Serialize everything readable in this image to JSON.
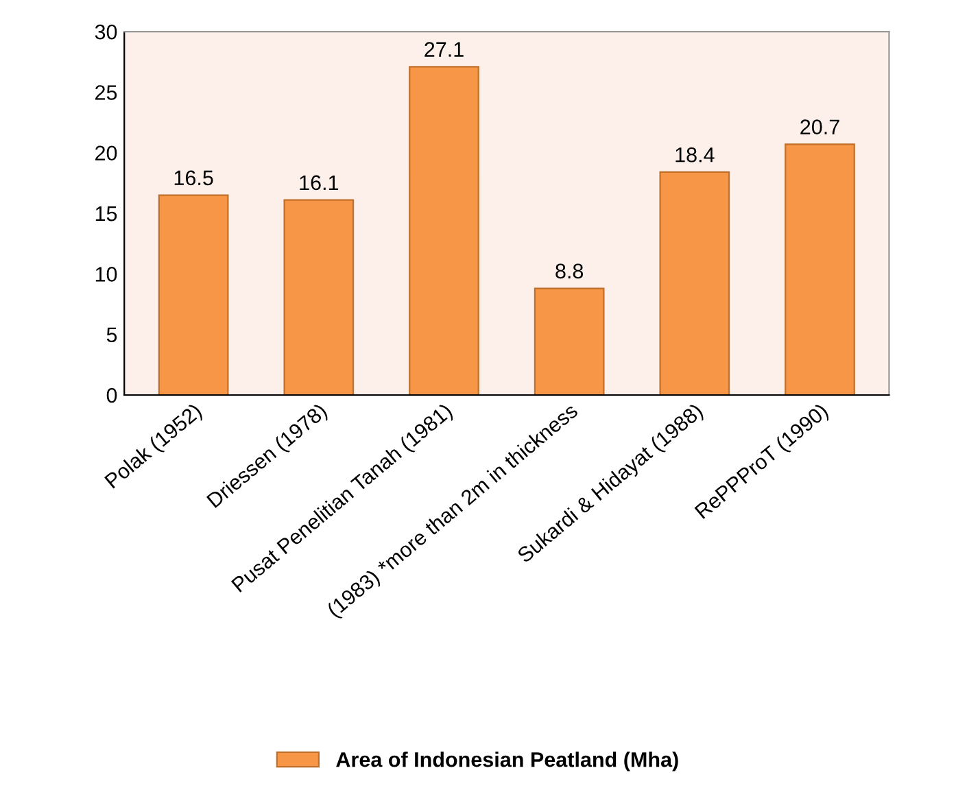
{
  "chart_data": {
    "type": "bar",
    "categories": [
      "Polak (1952)",
      "Driessen (1978)",
      "Pusat Penelitian Tanah (1981)",
      "(1983) *more than 2m in thickness",
      "Sukardi & Hidayat (1988)",
      "RePPProT (1990)"
    ],
    "series": [
      {
        "name": "Area of Indonesian Peatland (Mha)",
        "color": "#f79646",
        "values": [
          16.5,
          16.1,
          27.1,
          8.8,
          18.4,
          20.7
        ]
      }
    ],
    "ylim": [
      0,
      30
    ],
    "yticks": [
      0,
      5,
      10,
      15,
      20,
      25,
      30
    ],
    "data_labels": true,
    "grid": false,
    "legend": "bottom"
  }
}
